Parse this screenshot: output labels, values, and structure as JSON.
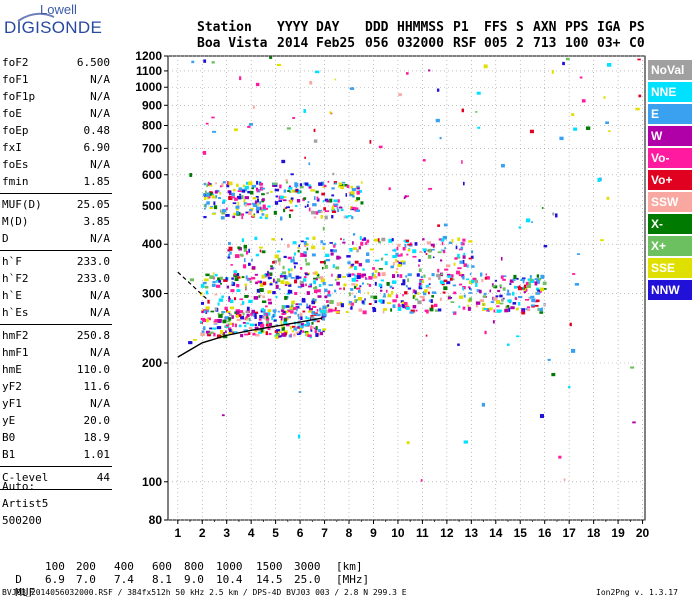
{
  "logo": {
    "top": "Lowell",
    "main": "DIGISONDE"
  },
  "header": {
    "labels": [
      "Station",
      "YYYY",
      "DAY",
      "DDD",
      "HHMMSS",
      "P1",
      "FFS",
      "S",
      "AXN",
      "PPS",
      "IGA",
      "PS"
    ],
    "values": [
      "Boa Vista",
      "2014",
      "Feb25",
      "056",
      "032000",
      "RSF",
      "005",
      "2",
      "713",
      "100",
      "03+",
      "C0"
    ]
  },
  "params": [
    {
      "k": "foF2",
      "v": "6.500"
    },
    {
      "k": "foF1",
      "v": "N/A"
    },
    {
      "k": "foF1p",
      "v": "N/A"
    },
    {
      "k": "foE",
      "v": "N/A"
    },
    {
      "k": "foEp",
      "v": "0.48"
    },
    {
      "k": "fxI",
      "v": "6.90"
    },
    {
      "k": "foEs",
      "v": "N/A"
    },
    {
      "k": "fmin",
      "v": "1.85"
    },
    {
      "k": "MUF(D)",
      "v": "25.05"
    },
    {
      "k": "M(D)",
      "v": "3.85"
    },
    {
      "k": "D",
      "v": "N/A"
    },
    {
      "k": "h`F",
      "v": "233.0"
    },
    {
      "k": "h`F2",
      "v": "233.0"
    },
    {
      "k": "h`E",
      "v": "N/A"
    },
    {
      "k": "h`Es",
      "v": "N/A"
    },
    {
      "k": "hmF2",
      "v": "250.8"
    },
    {
      "k": "hmF1",
      "v": "N/A"
    },
    {
      "k": "hmE",
      "v": "110.0"
    },
    {
      "k": "yF2",
      "v": "11.6"
    },
    {
      "k": "yF1",
      "v": "N/A"
    },
    {
      "k": "yE",
      "v": "20.0"
    },
    {
      "k": "B0",
      "v": "18.9"
    },
    {
      "k": "B1",
      "v": "1.01"
    },
    {
      "k": "C-level",
      "v": "44"
    }
  ],
  "auto": {
    "label": "Auto:",
    "artist": "Artist5",
    "code": "500200"
  },
  "muf_table": {
    "d_label": "D",
    "d_values": [
      "100",
      "200",
      "400",
      "600",
      "800",
      "1000",
      "1500",
      "3000"
    ],
    "d_unit": "[km]",
    "muf_label": "MUF",
    "muf_values": [
      "6.9",
      "7.0",
      "7.4",
      "8.1",
      "9.0",
      "10.4",
      "14.5",
      "25.0"
    ],
    "muf_unit": "[MHz]"
  },
  "footer": {
    "left": "BVJ03_2014056032000.RSF / 384fx512h 50 kHz 2.5 km / DPS-4D BVJ03 003 / 2.8 N 299.3 E",
    "right": "Ion2Png v. 1.3.17"
  },
  "legend": [
    {
      "name": "NoVal",
      "color": "#a0a0a0"
    },
    {
      "name": "NNE",
      "color": "#00e0ff"
    },
    {
      "name": "E",
      "color": "#3aa0f0"
    },
    {
      "name": "W",
      "color": "#b000a8"
    },
    {
      "name": "Vo-",
      "color": "#ff1aa0"
    },
    {
      "name": "Vo+",
      "color": "#e00020"
    },
    {
      "name": "SSW",
      "color": "#f8a8a0"
    },
    {
      "name": "X-",
      "color": "#007a00"
    },
    {
      "name": "X+",
      "color": "#6cc060"
    },
    {
      "name": "SSE",
      "color": "#e0e000"
    },
    {
      "name": "NNW",
      "color": "#2010d8"
    }
  ],
  "chart_data": {
    "type": "scatter",
    "title": "",
    "xlabel": "",
    "ylabel": "",
    "xlim": [
      0.6,
      20.1
    ],
    "ylim": [
      80,
      1200
    ],
    "y_scale": "log",
    "x_ticks": [
      1,
      2,
      3,
      4,
      5,
      6,
      7,
      8,
      9,
      10,
      11,
      12,
      13,
      14,
      15,
      16,
      17,
      18,
      19,
      20
    ],
    "y_ticks": [
      80,
      100,
      200,
      300,
      400,
      500,
      600,
      700,
      800,
      900,
      1000,
      1100,
      1200
    ],
    "grid": true,
    "legend_position": "right",
    "clusters": [
      {
        "name": "F2 trace",
        "x_range": [
          1.9,
          7.0
        ],
        "y_range": [
          235,
          275
        ],
        "count": 260
      },
      {
        "name": "O-trace layer ~300 km",
        "x_range": [
          1.9,
          16.0
        ],
        "y_range": [
          270,
          340
        ],
        "count": 520
      },
      {
        "name": "scatter 340-420 km",
        "x_range": [
          3.0,
          13.0
        ],
        "y_range": [
          330,
          420
        ],
        "count": 240
      },
      {
        "name": "second hop ~500 km",
        "x_range": [
          2.0,
          8.5
        ],
        "y_range": [
          470,
          580
        ],
        "count": 260
      },
      {
        "name": "sparse noise",
        "x_range": [
          1.0,
          20.0
        ],
        "y_range": [
          90,
          1200
        ],
        "count": 140
      }
    ],
    "curve": {
      "name": "profile",
      "x": [
        1.0,
        2.0,
        3.0,
        4.0,
        5.0,
        6.0,
        6.9
      ],
      "y": [
        207,
        225,
        235,
        242,
        248,
        254,
        260
      ]
    },
    "dashed": {
      "x": [
        1.0,
        2.2
      ],
      "y": [
        340,
        290
      ]
    }
  }
}
